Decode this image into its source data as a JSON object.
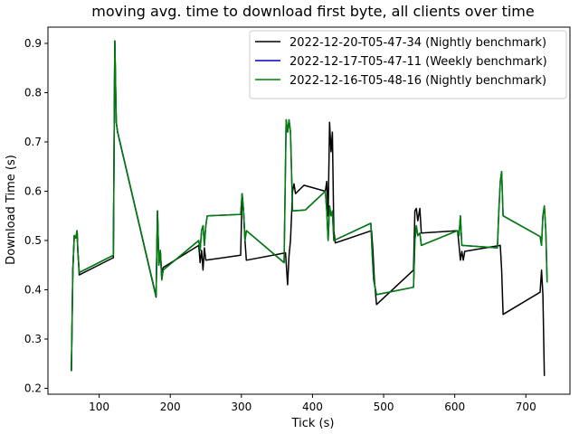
{
  "chart_data": {
    "type": "line",
    "title": "moving avg. time to download first byte, all clients over time",
    "xlabel": "Tick (s)",
    "ylabel": "Download Time (s)",
    "xlim": [
      28,
      762
    ],
    "ylim": [
      0.188,
      0.933
    ],
    "xticks": [
      100,
      200,
      300,
      400,
      500,
      600,
      700
    ],
    "yticks": [
      0.2,
      0.3,
      0.4,
      0.5,
      0.6,
      0.7,
      0.8,
      0.9
    ],
    "grid": false,
    "legend_position": "top-right",
    "series": [
      {
        "name": "2022-12-20-T05-47-34 (Nightly benchmark)",
        "color": "#000000",
        "points": [
          [
            61,
            0.235
          ],
          [
            63,
            0.44
          ],
          [
            65,
            0.51
          ],
          [
            67,
            0.505
          ],
          [
            69,
            0.52
          ],
          [
            70,
            0.48
          ],
          [
            72,
            0.43
          ],
          [
            120,
            0.465
          ],
          [
            122,
            0.905
          ],
          [
            124,
            0.74
          ],
          [
            126,
            0.72
          ],
          [
            180,
            0.385
          ],
          [
            182,
            0.56
          ],
          [
            184,
            0.45
          ],
          [
            186,
            0.48
          ],
          [
            188,
            0.43
          ],
          [
            190,
            0.445
          ],
          [
            240,
            0.49
          ],
          [
            242,
            0.455
          ],
          [
            244,
            0.48
          ],
          [
            246,
            0.44
          ],
          [
            248,
            0.485
          ],
          [
            250,
            0.46
          ],
          [
            299,
            0.47
          ],
          [
            301,
            0.595
          ],
          [
            303,
            0.56
          ],
          [
            305,
            0.5
          ],
          [
            307,
            0.46
          ],
          [
            362,
            0.475
          ],
          [
            365,
            0.41
          ],
          [
            367,
            0.47
          ],
          [
            369,
            0.5
          ],
          [
            372,
            0.6
          ],
          [
            374,
            0.615
          ],
          [
            376,
            0.595
          ],
          [
            388,
            0.612
          ],
          [
            418,
            0.6
          ],
          [
            420,
            0.62
          ],
          [
            422,
            0.55
          ],
          [
            424,
            0.74
          ],
          [
            426,
            0.68
          ],
          [
            428,
            0.72
          ],
          [
            430,
            0.52
          ],
          [
            432,
            0.495
          ],
          [
            483,
            0.52
          ],
          [
            485,
            0.48
          ],
          [
            487,
            0.42
          ],
          [
            490,
            0.37
          ],
          [
            542,
            0.44
          ],
          [
            544,
            0.56
          ],
          [
            546,
            0.565
          ],
          [
            548,
            0.54
          ],
          [
            551,
            0.565
          ],
          [
            553,
            0.515
          ],
          [
            604,
            0.52
          ],
          [
            606,
            0.49
          ],
          [
            608,
            0.46
          ],
          [
            610,
            0.478
          ],
          [
            612,
            0.46
          ],
          [
            614,
            0.478
          ],
          [
            664,
            0.49
          ],
          [
            666,
            0.44
          ],
          [
            668,
            0.35
          ],
          [
            720,
            0.395
          ],
          [
            722,
            0.44
          ],
          [
            724,
            0.39
          ],
          [
            726,
            0.225
          ]
        ]
      },
      {
        "name": "2022-12-17-T05-47-11 (Weekly benchmark)",
        "color": "#0000cc",
        "points": [
          [
            61,
            0.235
          ],
          [
            63,
            0.44
          ],
          [
            65,
            0.51
          ],
          [
            67,
            0.505
          ],
          [
            69,
            0.52
          ],
          [
            70,
            0.48
          ],
          [
            72,
            0.435
          ],
          [
            120,
            0.47
          ],
          [
            122,
            0.905
          ],
          [
            124,
            0.74
          ],
          [
            126,
            0.72
          ],
          [
            180,
            0.387
          ],
          [
            182,
            0.56
          ],
          [
            184,
            0.45
          ],
          [
            186,
            0.48
          ],
          [
            188,
            0.42
          ],
          [
            190,
            0.44
          ],
          [
            240,
            0.5
          ],
          [
            242,
            0.48
          ],
          [
            244,
            0.52
          ],
          [
            246,
            0.53
          ],
          [
            248,
            0.49
          ],
          [
            250,
            0.53
          ],
          [
            252,
            0.55
          ],
          [
            299,
            0.553
          ],
          [
            301,
            0.595
          ],
          [
            303,
            0.56
          ],
          [
            305,
            0.5
          ],
          [
            307,
            0.52
          ],
          [
            360,
            0.455
          ],
          [
            363,
            0.745
          ],
          [
            365,
            0.72
          ],
          [
            367,
            0.745
          ],
          [
            369,
            0.72
          ],
          [
            372,
            0.56
          ],
          [
            390,
            0.562
          ],
          [
            418,
            0.6
          ],
          [
            420,
            0.56
          ],
          [
            422,
            0.5
          ],
          [
            424,
            0.57
          ],
          [
            426,
            0.55
          ],
          [
            428,
            0.56
          ],
          [
            430,
            0.5
          ],
          [
            482,
            0.535
          ],
          [
            484,
            0.47
          ],
          [
            486,
            0.42
          ],
          [
            490,
            0.39
          ],
          [
            542,
            0.405
          ],
          [
            544,
            0.5
          ],
          [
            546,
            0.53
          ],
          [
            548,
            0.51
          ],
          [
            551,
            0.515
          ],
          [
            553,
            0.49
          ],
          [
            604,
            0.52
          ],
          [
            606,
            0.51
          ],
          [
            608,
            0.55
          ],
          [
            610,
            0.49
          ],
          [
            660,
            0.485
          ],
          [
            662,
            0.56
          ],
          [
            664,
            0.62
          ],
          [
            666,
            0.64
          ],
          [
            668,
            0.55
          ],
          [
            720,
            0.508
          ],
          [
            722,
            0.49
          ],
          [
            724,
            0.55
          ],
          [
            726,
            0.57
          ],
          [
            728,
            0.52
          ],
          [
            730,
            0.415
          ]
        ]
      },
      {
        "name": "2022-12-16-T05-48-16 (Nightly benchmark)",
        "color": "#008000",
        "points": [
          [
            61,
            0.235
          ],
          [
            63,
            0.44
          ],
          [
            65,
            0.51
          ],
          [
            67,
            0.505
          ],
          [
            69,
            0.52
          ],
          [
            70,
            0.48
          ],
          [
            72,
            0.435
          ],
          [
            120,
            0.47
          ],
          [
            122,
            0.905
          ],
          [
            124,
            0.74
          ],
          [
            126,
            0.72
          ],
          [
            180,
            0.387
          ],
          [
            182,
            0.56
          ],
          [
            184,
            0.45
          ],
          [
            186,
            0.48
          ],
          [
            188,
            0.42
          ],
          [
            190,
            0.44
          ],
          [
            240,
            0.5
          ],
          [
            242,
            0.48
          ],
          [
            244,
            0.52
          ],
          [
            246,
            0.53
          ],
          [
            248,
            0.49
          ],
          [
            250,
            0.53
          ],
          [
            252,
            0.55
          ],
          [
            299,
            0.553
          ],
          [
            301,
            0.595
          ],
          [
            303,
            0.56
          ],
          [
            305,
            0.5
          ],
          [
            307,
            0.52
          ],
          [
            360,
            0.455
          ],
          [
            363,
            0.745
          ],
          [
            365,
            0.72
          ],
          [
            367,
            0.745
          ],
          [
            369,
            0.72
          ],
          [
            372,
            0.56
          ],
          [
            390,
            0.562
          ],
          [
            418,
            0.6
          ],
          [
            420,
            0.56
          ],
          [
            422,
            0.5
          ],
          [
            424,
            0.57
          ],
          [
            426,
            0.55
          ],
          [
            428,
            0.56
          ],
          [
            430,
            0.5
          ],
          [
            482,
            0.535
          ],
          [
            484,
            0.47
          ],
          [
            486,
            0.42
          ],
          [
            490,
            0.39
          ],
          [
            542,
            0.405
          ],
          [
            544,
            0.5
          ],
          [
            546,
            0.53
          ],
          [
            548,
            0.51
          ],
          [
            551,
            0.515
          ],
          [
            553,
            0.49
          ],
          [
            604,
            0.52
          ],
          [
            606,
            0.51
          ],
          [
            608,
            0.55
          ],
          [
            610,
            0.49
          ],
          [
            660,
            0.485
          ],
          [
            662,
            0.56
          ],
          [
            664,
            0.62
          ],
          [
            666,
            0.64
          ],
          [
            668,
            0.55
          ],
          [
            720,
            0.508
          ],
          [
            722,
            0.49
          ],
          [
            724,
            0.55
          ],
          [
            726,
            0.57
          ],
          [
            728,
            0.52
          ],
          [
            730,
            0.415
          ]
        ]
      }
    ]
  }
}
